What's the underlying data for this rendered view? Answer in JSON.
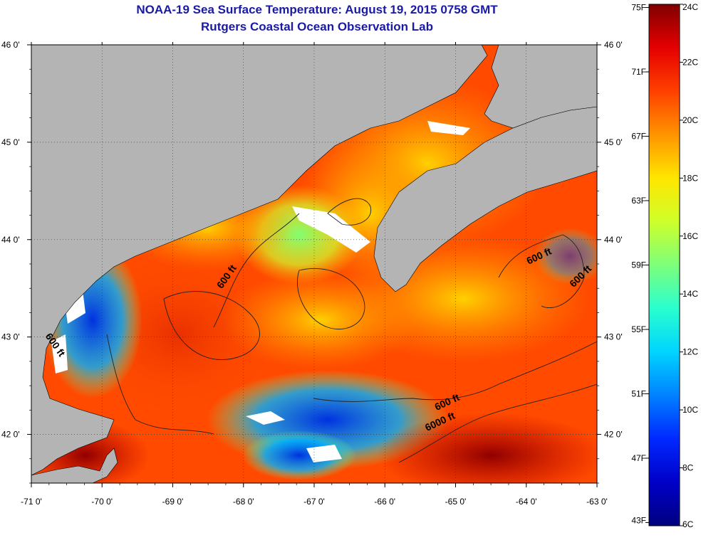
{
  "title": {
    "line1": "NOAA-19 Sea Surface Temperature:  August 19, 2015 0758 GMT",
    "line2": "Rutgers Coastal Ocean Observation Lab"
  },
  "map": {
    "lon_labels": [
      "-71 0'",
      "-70 0'",
      "-69 0'",
      "-68 0'",
      "-67 0'",
      "-66 0'",
      "-65 0'",
      "-64 0'",
      "-63 0'"
    ],
    "lon_values": [
      -71,
      -70,
      -69,
      -68,
      -67,
      -66,
      -65,
      -64,
      -63
    ],
    "lat_labels": [
      "46 0'",
      "45 0'",
      "44 0'",
      "43 0'",
      "42 0'"
    ],
    "lat_values": [
      46,
      45,
      44,
      43,
      42
    ],
    "lon_range": [
      -71,
      -63
    ],
    "lat_range": [
      41.5,
      46
    ],
    "land_color": "#b4b4b4",
    "contour_labels": [
      {
        "text": "600 ft",
        "lon": -68.2,
        "lat": 43.6,
        "angle": -55
      },
      {
        "text": "600 ft",
        "lon": -70.7,
        "lat": 42.9,
        "angle": 55
      },
      {
        "text": "600 ft",
        "lon": -63.8,
        "lat": 43.8,
        "angle": -25
      },
      {
        "text": "600 ft",
        "lon": -63.2,
        "lat": 43.6,
        "angle": -45
      },
      {
        "text": "600 ft",
        "lon": -65.1,
        "lat": 42.3,
        "angle": -25
      },
      {
        "text": "6000 ft",
        "lon": -65.2,
        "lat": 42.1,
        "angle": -25
      }
    ]
  },
  "colorbar": {
    "colors": [
      "#00007f",
      "#0000c8",
      "#0028ff",
      "#0082ff",
      "#00d4ff",
      "#29ffce",
      "#7dff7a",
      "#ceff29",
      "#ffe600",
      "#ff9400",
      "#ff4000",
      "#e40000",
      "#800000"
    ],
    "c_labels": [
      "24C",
      "22C",
      "20C",
      "18C",
      "16C",
      "14C",
      "12C",
      "10C",
      "8C",
      "6C"
    ],
    "c_values": [
      24,
      22,
      20,
      18,
      16,
      14,
      12,
      10,
      8,
      6
    ],
    "f_labels": [
      "75F",
      "71F",
      "67F",
      "63F",
      "59F",
      "55F",
      "51F",
      "47F",
      "43F"
    ],
    "f_values": [
      75,
      71,
      67,
      63,
      59,
      55,
      51,
      47,
      43
    ],
    "c_range": [
      6,
      24
    ]
  }
}
